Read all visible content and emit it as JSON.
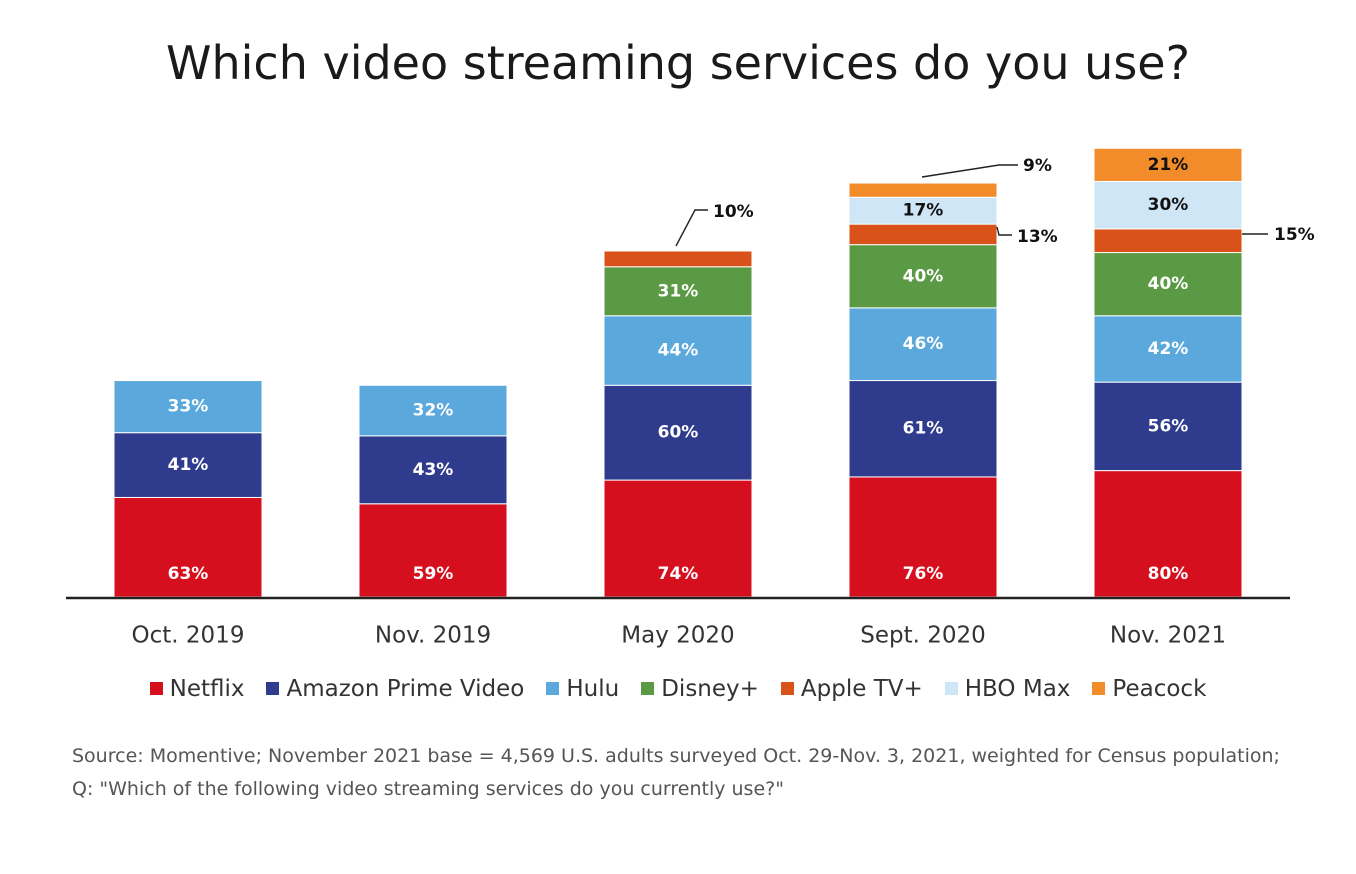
{
  "chart_data": {
    "type": "bar",
    "stacked": true,
    "title": "Which video streaming services do you use?",
    "categories": [
      "Oct. 2019",
      "Nov. 2019",
      "May 2020",
      "Sept. 2020",
      "Nov. 2021"
    ],
    "series": [
      {
        "name": "Netflix",
        "color": "#d50f1e",
        "values": [
          63,
          59,
          74,
          76,
          80
        ],
        "labels": [
          "63%",
          "59%",
          "74%",
          "76%",
          "80%"
        ]
      },
      {
        "name": "Amazon Prime Video",
        "color": "#2f3b8c",
        "values": [
          41,
          43,
          60,
          61,
          56
        ],
        "labels": [
          "41%",
          "43%",
          "60%",
          "61%",
          "56%"
        ]
      },
      {
        "name": "Hulu",
        "color": "#5ba8dc",
        "values": [
          33,
          32,
          44,
          46,
          42
        ],
        "labels": [
          "33%",
          "32%",
          "44%",
          "46%",
          "42%"
        ]
      },
      {
        "name": "Disney+",
        "color": "#5b9a45",
        "values": [
          null,
          null,
          31,
          40,
          40
        ],
        "labels": [
          null,
          null,
          "31%",
          "40%",
          "40%"
        ]
      },
      {
        "name": "Apple TV+",
        "color": "#d95219",
        "values": [
          null,
          null,
          10,
          13,
          15
        ],
        "labels": [
          null,
          null,
          "10%",
          "13%",
          "15%"
        ]
      },
      {
        "name": "HBO Max",
        "color": "#cfe6f6",
        "values": [
          null,
          null,
          null,
          17,
          30
        ],
        "labels": [
          null,
          null,
          null,
          "17%",
          "30%"
        ]
      },
      {
        "name": "Peacock",
        "color": "#f28c2a",
        "values": [
          null,
          null,
          null,
          9,
          21
        ],
        "labels": [
          null,
          null,
          null,
          "9%",
          "21%"
        ]
      }
    ],
    "xlabel": "",
    "ylabel": "",
    "ylim": [
      0,
      290
    ],
    "grid": false,
    "legend_position": "bottom"
  },
  "source_note": "Source: Momentive; November 2021 base = 4,569 U.S. adults surveyed Oct. 29-Nov. 3, 2021, weighted for Census population; Q: \"Which of the following video streaming services do you currently use?\""
}
